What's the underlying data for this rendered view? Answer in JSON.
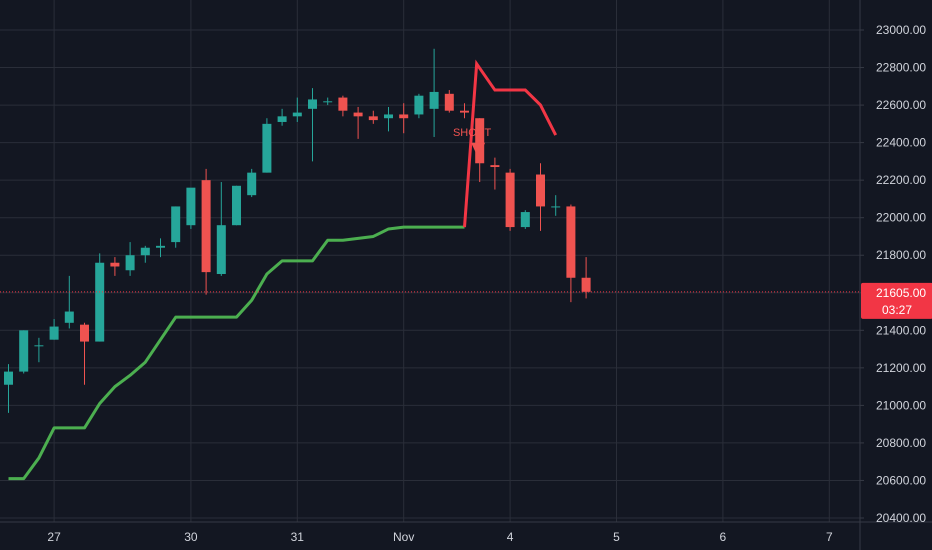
{
  "colors": {
    "background": "#131722",
    "grid": "#2a2e39",
    "text": "#d1d4dc",
    "up": "#26a69a",
    "down": "#ef5350",
    "support_line": "#4caf50",
    "signal_line": "#f23645",
    "price_line": "#f23645"
  },
  "chart_data": {
    "type": "candlestick",
    "grid": true,
    "y_axis": {
      "position": "right",
      "ylim": [
        20390,
        23140
      ],
      "ticks": [
        20400,
        20600,
        20800,
        21000,
        21200,
        21400,
        21600,
        21800,
        22000,
        22200,
        22400,
        22600,
        22800,
        23000
      ],
      "tick_labels": [
        "20400.00",
        "20600.00",
        "20800.00",
        "21000.00",
        "21200.00",
        "21400.00",
        "21600.00",
        "21800.00",
        "22000.00",
        "22200.00",
        "22400.00",
        "22600.00",
        "22800.00",
        "23000.00"
      ]
    },
    "x_axis": {
      "ticks": [
        {
          "label": "27",
          "bar": 3
        },
        {
          "label": "30",
          "bar": 12
        },
        {
          "label": "31",
          "bar": 19
        },
        {
          "label": "Nov",
          "bar": 26
        },
        {
          "label": "4",
          "bar": 33
        },
        {
          "label": "5",
          "bar": 40
        },
        {
          "label": "6",
          "bar": 47
        },
        {
          "label": "7",
          "bar": 54
        }
      ]
    },
    "candles": [
      {
        "o": 21110,
        "h": 21220,
        "l": 20960,
        "c": 21180
      },
      {
        "o": 21180,
        "h": 21400,
        "l": 21170,
        "c": 21400
      },
      {
        "o": 21320,
        "h": 21360,
        "l": 21230,
        "c": 21320
      },
      {
        "o": 21350,
        "h": 21460,
        "l": 21350,
        "c": 21420
      },
      {
        "o": 21440,
        "h": 21690,
        "l": 21410,
        "c": 21500
      },
      {
        "o": 21430,
        "h": 21440,
        "l": 21110,
        "c": 21340
      },
      {
        "o": 21340,
        "h": 21810,
        "l": 21340,
        "c": 21760
      },
      {
        "o": 21760,
        "h": 21790,
        "l": 21690,
        "c": 21740
      },
      {
        "o": 21720,
        "h": 21870,
        "l": 21690,
        "c": 21800
      },
      {
        "o": 21800,
        "h": 21850,
        "l": 21760,
        "c": 21840
      },
      {
        "o": 21840,
        "h": 21890,
        "l": 21790,
        "c": 21850
      },
      {
        "o": 21870,
        "h": 22060,
        "l": 21840,
        "c": 22060
      },
      {
        "o": 21960,
        "h": 22140,
        "l": 21940,
        "c": 22160
      },
      {
        "o": 22200,
        "h": 22260,
        "l": 21590,
        "c": 21710
      },
      {
        "o": 21700,
        "h": 22190,
        "l": 21690,
        "c": 21960
      },
      {
        "o": 21960,
        "h": 22170,
        "l": 21960,
        "c": 22170
      },
      {
        "o": 22120,
        "h": 22260,
        "l": 22110,
        "c": 22240
      },
      {
        "o": 22240,
        "h": 22530,
        "l": 22240,
        "c": 22500
      },
      {
        "o": 22510,
        "h": 22580,
        "l": 22490,
        "c": 22540
      },
      {
        "o": 22540,
        "h": 22640,
        "l": 22510,
        "c": 22560
      },
      {
        "o": 22580,
        "h": 22690,
        "l": 22300,
        "c": 22630
      },
      {
        "o": 22620,
        "h": 22640,
        "l": 22600,
        "c": 22620
      },
      {
        "o": 22640,
        "h": 22650,
        "l": 22540,
        "c": 22570
      },
      {
        "o": 22560,
        "h": 22590,
        "l": 22420,
        "c": 22540
      },
      {
        "o": 22540,
        "h": 22570,
        "l": 22500,
        "c": 22520
      },
      {
        "o": 22530,
        "h": 22590,
        "l": 22460,
        "c": 22550
      },
      {
        "o": 22550,
        "h": 22610,
        "l": 22450,
        "c": 22530
      },
      {
        "o": 22550,
        "h": 22660,
        "l": 22530,
        "c": 22650
      },
      {
        "o": 22580,
        "h": 22900,
        "l": 22430,
        "c": 22670
      },
      {
        "o": 22660,
        "h": 22680,
        "l": 22560,
        "c": 22570
      },
      {
        "o": 22570,
        "h": 22610,
        "l": 22530,
        "c": 22560
      },
      {
        "o": 22530,
        "h": 22530,
        "l": 22190,
        "c": 22290
      },
      {
        "o": 22280,
        "h": 22320,
        "l": 22150,
        "c": 22270
      },
      {
        "o": 22240,
        "h": 22260,
        "l": 21930,
        "c": 21950
      },
      {
        "o": 21950,
        "h": 22040,
        "l": 21940,
        "c": 22030
      },
      {
        "o": 22230,
        "h": 22290,
        "l": 21930,
        "c": 22060
      },
      {
        "o": 22060,
        "h": 22120,
        "l": 22010,
        "c": 22060
      },
      {
        "o": 22060,
        "h": 22070,
        "l": 21550,
        "c": 21680
      },
      {
        "o": 21680,
        "h": 21790,
        "l": 21570,
        "c": 21605
      }
    ],
    "last_price": {
      "value": 21605,
      "label": "21605.00",
      "countdown": "03:27"
    },
    "support_line": [
      [
        0,
        20610
      ],
      [
        1,
        20610
      ],
      [
        2,
        20720
      ],
      [
        3,
        20880
      ],
      [
        4,
        20880
      ],
      [
        5,
        20880
      ],
      [
        6,
        21010
      ],
      [
        7,
        21100
      ],
      [
        8,
        21160
      ],
      [
        9,
        21230
      ],
      [
        10,
        21350
      ],
      [
        11,
        21470
      ],
      [
        12,
        21470
      ],
      [
        13,
        21470
      ],
      [
        14,
        21470
      ],
      [
        15,
        21470
      ],
      [
        16,
        21560
      ],
      [
        17,
        21700
      ],
      [
        18,
        21770
      ],
      [
        19,
        21770
      ],
      [
        20,
        21770
      ],
      [
        21,
        21880
      ],
      [
        22,
        21880
      ],
      [
        23,
        21890
      ],
      [
        24,
        21900
      ],
      [
        25,
        21940
      ],
      [
        26,
        21950
      ],
      [
        27,
        21950
      ],
      [
        28,
        21950
      ],
      [
        29,
        21950
      ],
      [
        30,
        21950
      ]
    ],
    "signal_line": [
      [
        30,
        21950
      ],
      [
        30.8,
        22820
      ],
      [
        32,
        22680
      ],
      [
        33,
        22680
      ],
      [
        34,
        22680
      ],
      [
        35,
        22600
      ],
      [
        36,
        22440
      ]
    ],
    "annotation": {
      "text": "SHORT",
      "bar": 30.7,
      "price": 22330
    }
  }
}
